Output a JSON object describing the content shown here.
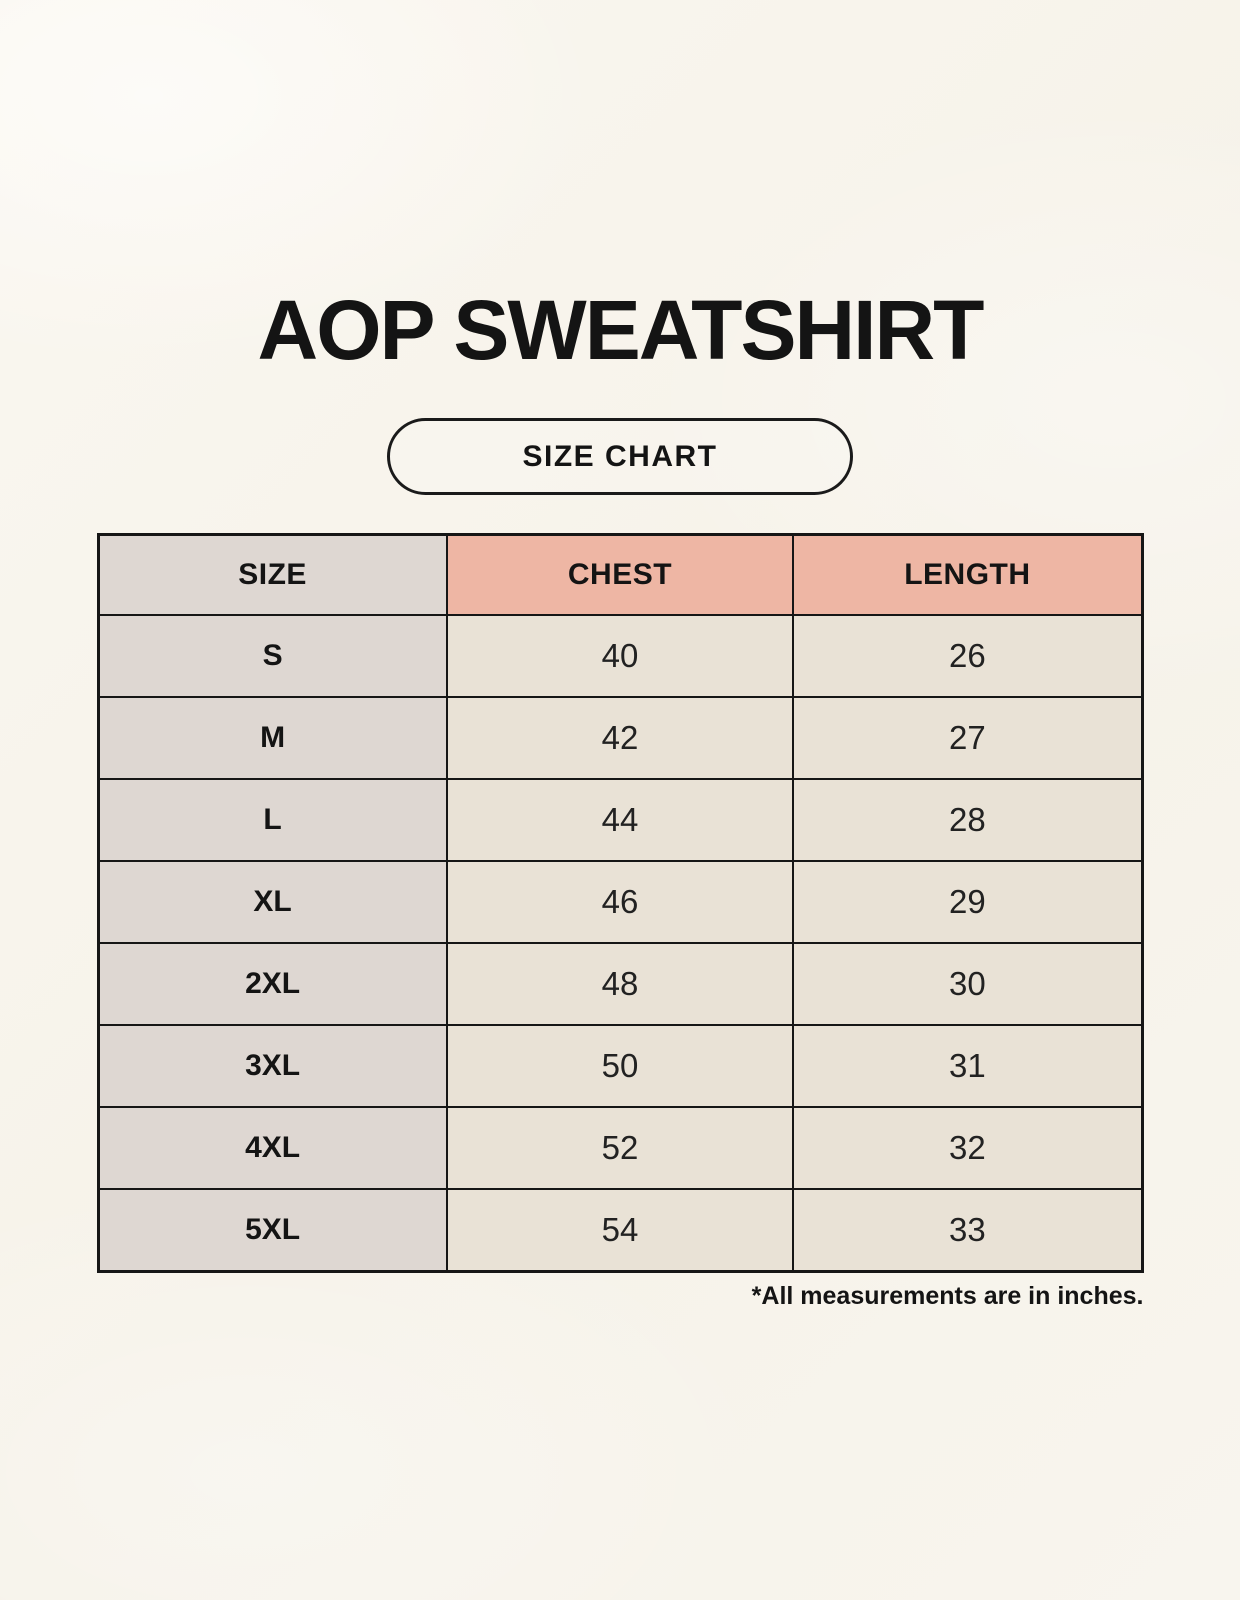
{
  "page": {
    "title": "AOP SWEATSHIRT",
    "badge_label": "SIZE CHART",
    "footnote": "*All measurements are in inches."
  },
  "size_table": {
    "columns": [
      "SIZE",
      "CHEST",
      "LENGTH"
    ],
    "rows": [
      {
        "size": "S",
        "chest": "40",
        "length": "26"
      },
      {
        "size": "M",
        "chest": "42",
        "length": "27"
      },
      {
        "size": "L",
        "chest": "44",
        "length": "28"
      },
      {
        "size": "XL",
        "chest": "46",
        "length": "29"
      },
      {
        "size": "2XL",
        "chest": "48",
        "length": "30"
      },
      {
        "size": "3XL",
        "chest": "50",
        "length": "31"
      },
      {
        "size": "4XL",
        "chest": "52",
        "length": "32"
      },
      {
        "size": "5XL",
        "chest": "54",
        "length": "33"
      }
    ],
    "units_note": "inches"
  },
  "colors": {
    "background": "#f8f5ed",
    "header_pink": "#eeb6a4",
    "column_gray": "#ded7d2",
    "cell_beige": "#e9e2d6",
    "border": "#161616",
    "text": "#141414"
  }
}
